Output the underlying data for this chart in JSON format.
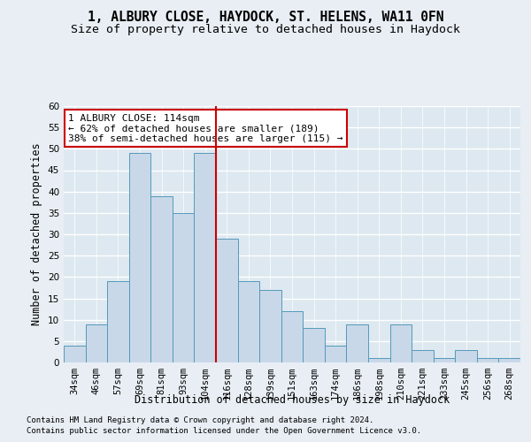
{
  "title_line1": "1, ALBURY CLOSE, HAYDOCK, ST. HELENS, WA11 0FN",
  "title_line2": "Size of property relative to detached houses in Haydock",
  "xlabel": "Distribution of detached houses by size in Haydock",
  "ylabel": "Number of detached properties",
  "footnote1": "Contains HM Land Registry data © Crown copyright and database right 2024.",
  "footnote2": "Contains public sector information licensed under the Open Government Licence v3.0.",
  "categories": [
    "34sqm",
    "46sqm",
    "57sqm",
    "69sqm",
    "81sqm",
    "93sqm",
    "104sqm",
    "116sqm",
    "128sqm",
    "139sqm",
    "151sqm",
    "163sqm",
    "174sqm",
    "186sqm",
    "198sqm",
    "210sqm",
    "221sqm",
    "233sqm",
    "245sqm",
    "256sqm",
    "268sqm"
  ],
  "values": [
    4,
    9,
    19,
    49,
    39,
    35,
    49,
    29,
    19,
    17,
    12,
    8,
    4,
    9,
    1,
    9,
    3,
    1,
    3,
    1,
    1
  ],
  "bar_color": "#c8d8e8",
  "bar_edge_color": "#5599bb",
  "vline_index": 7,
  "vline_color": "#cc0000",
  "annotation_text": "1 ALBURY CLOSE: 114sqm\n← 62% of detached houses are smaller (189)\n38% of semi-detached houses are larger (115) →",
  "annotation_box_facecolor": "#ffffff",
  "annotation_box_edgecolor": "#cc0000",
  "ylim": [
    0,
    60
  ],
  "yticks": [
    0,
    5,
    10,
    15,
    20,
    25,
    30,
    35,
    40,
    45,
    50,
    55,
    60
  ],
  "bg_color": "#e8eef4",
  "plot_bg_color": "#dde8f0",
  "grid_color": "#ffffff",
  "title_fontsize": 10.5,
  "subtitle_fontsize": 9.5,
  "axis_label_fontsize": 8.5,
  "tick_fontsize": 7.5,
  "annotation_fontsize": 8,
  "footnote_fontsize": 6.5
}
